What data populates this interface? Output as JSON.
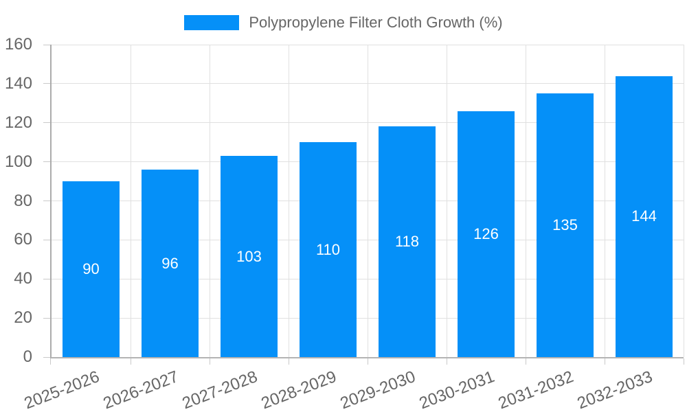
{
  "chart_data": {
    "type": "bar",
    "title": "Polypropylene Filter Cloth Growth (%)",
    "categories": [
      "2025-2026",
      "2026-2027",
      "2027-2028",
      "2028-2029",
      "2029-2030",
      "2030-2031",
      "2031-2032",
      "2032-2033"
    ],
    "values": [
      90,
      96,
      103,
      110,
      118,
      126,
      135,
      144
    ],
    "xlabel": "",
    "ylabel": "",
    "ylim": [
      0,
      160
    ],
    "yticks": [
      0,
      20,
      40,
      60,
      80,
      100,
      120,
      140,
      160
    ],
    "grid": true,
    "legend": {
      "position": "top",
      "label": "Polypropylene Filter Cloth Growth (%)"
    },
    "colors": {
      "bar": "#0590f8",
      "grid": "#e0e0e0",
      "axis": "#ababab",
      "tick": "#c9c9c9",
      "text": "#666666",
      "value_label": "#ffffff",
      "background": "#ffffff"
    }
  }
}
